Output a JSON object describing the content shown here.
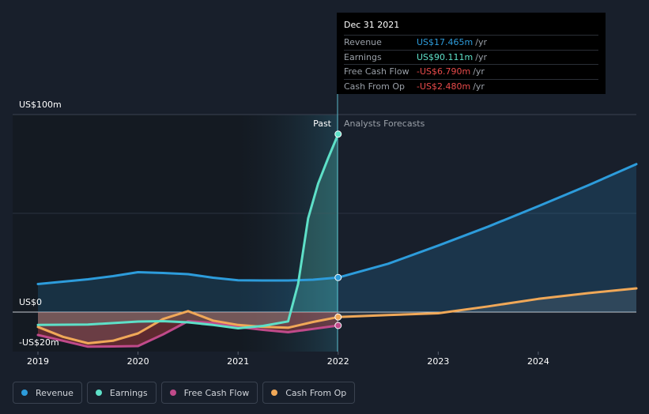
{
  "tooltip": {
    "date": "Dec 31 2021",
    "rows": [
      {
        "label": "Revenue",
        "value": "US$17.465m",
        "unit": "/yr",
        "color": "#2d9cdb"
      },
      {
        "label": "Earnings",
        "value": "US$90.111m",
        "unit": "/yr",
        "color": "#5ee0c8"
      },
      {
        "label": "Free Cash Flow",
        "value": "-US$6.790m",
        "unit": "/yr",
        "color": "#e84a4a"
      },
      {
        "label": "Cash From Op",
        "value": "-US$2.480m",
        "unit": "/yr",
        "color": "#e84a4a"
      }
    ]
  },
  "labels": {
    "past": "Past",
    "forecast": "Analysts Forecasts"
  },
  "chart_data": {
    "type": "line",
    "y_tick_labels": [
      "US$100m",
      "US$0",
      "-US$20m"
    ],
    "x_tick_labels": [
      "2019",
      "2020",
      "2021",
      "2022",
      "2023",
      "2024"
    ],
    "ylim": [
      -20,
      100
    ],
    "xlim": [
      2019.0,
      2024.98
    ],
    "past_end": 2022.0,
    "highlight_start": 2021.0,
    "series": [
      {
        "name": "Revenue",
        "color": "#2d9cdb",
        "x": [
          2019.0,
          2019.5,
          2019.75,
          2020.0,
          2020.25,
          2020.5,
          2020.75,
          2021.0,
          2021.25,
          2021.5,
          2021.75,
          2022.0,
          2022.5,
          2023.0,
          2023.5,
          2024.0,
          2024.5,
          2024.98
        ],
        "y": [
          14.2,
          16.6,
          18.2,
          20.2,
          19.8,
          19.2,
          17.4,
          16.1,
          16.0,
          16.0,
          16.4,
          17.5,
          24.5,
          33.7,
          43.3,
          53.6,
          64.2,
          74.9
        ]
      },
      {
        "name": "Earnings",
        "color": "#5ee0c8",
        "x": [
          2019.0,
          2019.5,
          2020.0,
          2020.25,
          2020.5,
          2020.75,
          2021.0,
          2021.25,
          2021.5,
          2021.6,
          2021.7,
          2021.8,
          2021.9,
          2022.0
        ],
        "y": [
          -6.5,
          -6.3,
          -4.8,
          -4.6,
          -5.2,
          -6.5,
          -8.2,
          -7.0,
          -4.7,
          14.2,
          47.5,
          65.0,
          77.9,
          90.1
        ]
      },
      {
        "name": "Free Cash Flow",
        "color": "#c04a8a",
        "x": [
          2019.0,
          2019.25,
          2019.5,
          2019.75,
          2020.0,
          2020.25,
          2020.5,
          2020.75,
          2021.0,
          2021.25,
          2021.5,
          2021.75,
          2022.0
        ],
        "y": [
          -11.6,
          -14.5,
          -17.5,
          -17.4,
          -17.2,
          -11.3,
          -4.6,
          -5.5,
          -7.5,
          -9.0,
          -10.2,
          -8.5,
          -6.8
        ]
      },
      {
        "name": "Cash From Op",
        "color": "#f0a858",
        "x": [
          2019.0,
          2019.25,
          2019.5,
          2019.75,
          2020.0,
          2020.25,
          2020.5,
          2020.75,
          2021.0,
          2021.25,
          2021.5,
          2021.75,
          2022.0,
          2022.5,
          2023.0,
          2023.5,
          2024.0,
          2024.5,
          2024.98
        ],
        "y": [
          -7.5,
          -12.5,
          -15.8,
          -14.5,
          -10.8,
          -3.5,
          0.5,
          -4.3,
          -6.5,
          -7.5,
          -7.9,
          -5.0,
          -2.5,
          -1.5,
          -0.6,
          2.9,
          6.7,
          9.6,
          12.0
        ]
      }
    ]
  },
  "legend": [
    {
      "label": "Revenue",
      "color": "#2d9cdb"
    },
    {
      "label": "Earnings",
      "color": "#5ee0c8"
    },
    {
      "label": "Free Cash Flow",
      "color": "#c04a8a"
    },
    {
      "label": "Cash From Op",
      "color": "#f0a858"
    }
  ]
}
